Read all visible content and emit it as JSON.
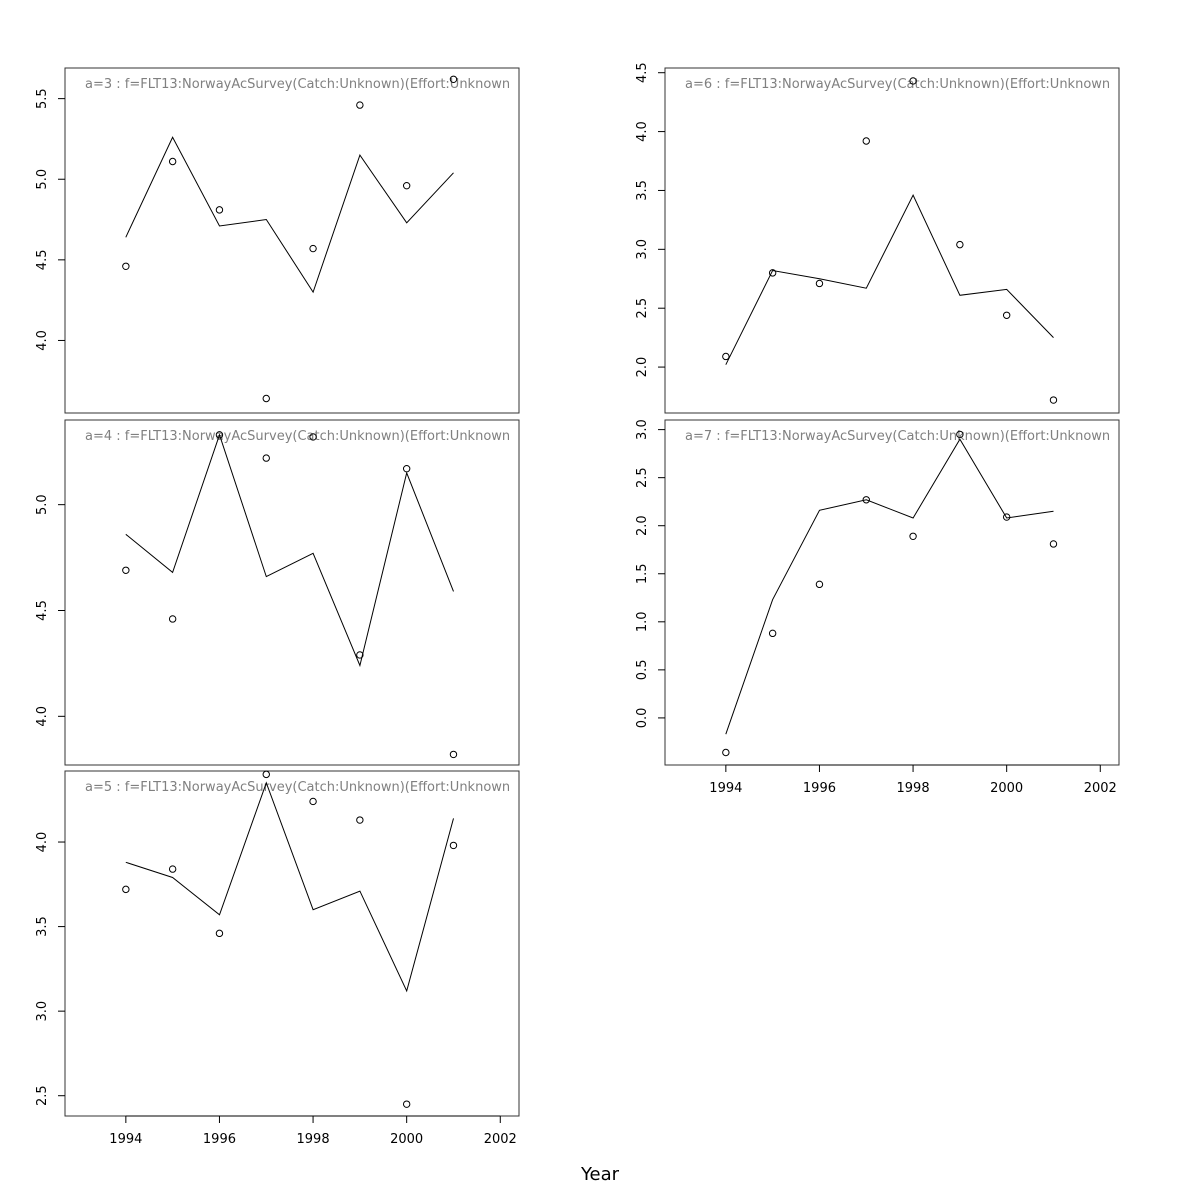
{
  "chart_data": {
    "type": "line",
    "xlabel": "Year",
    "xlim": [
      1992.7,
      2002.4
    ],
    "x_ticks": [
      1994,
      1996,
      1998,
      2000,
      2002
    ],
    "x": [
      1994,
      1995,
      1996,
      1997,
      1998,
      1999,
      2000,
      2001
    ],
    "panels": [
      {
        "title": "a=3  :  f=FLT13:NorwayAcSurvey(Catch:Unknown)(Effort:Unknown",
        "ylim": [
          3.55,
          5.69
        ],
        "y_ticks": [
          4.0,
          4.5,
          5.0,
          5.5
        ],
        "y_tick_labels": [
          "4.0",
          "4.5",
          "5.0",
          "5.5"
        ],
        "fitted": [
          4.64,
          5.26,
          4.71,
          4.75,
          4.3,
          5.15,
          4.73,
          5.04
        ],
        "observed": [
          4.46,
          5.11,
          4.81,
          3.64,
          4.57,
          5.46,
          4.96,
          5.62
        ]
      },
      {
        "title": "a=4  :  f=FLT13:NorwayAcSurvey(Catch:Unknown)(Effort:Unknown",
        "ylim": [
          3.77,
          5.4
        ],
        "y_ticks": [
          4.0,
          4.5,
          5.0
        ],
        "y_tick_labels": [
          "4.0",
          "4.5",
          "5.0"
        ],
        "fitted": [
          4.86,
          4.68,
          5.33,
          4.66,
          4.77,
          4.24,
          5.15,
          4.59
        ],
        "observed": [
          4.69,
          4.46,
          5.33,
          5.22,
          5.32,
          4.29,
          5.17,
          3.82
        ]
      },
      {
        "title": "a=5  :  f=FLT13:NorwayAcSurvey(Catch:Unknown)(Effort:Unknown",
        "ylim": [
          2.38,
          4.42
        ],
        "y_ticks": [
          2.5,
          3.0,
          3.5,
          4.0
        ],
        "y_tick_labels": [
          "2.5",
          "3.0",
          "3.5",
          "4.0"
        ],
        "fitted": [
          3.88,
          3.79,
          3.57,
          4.35,
          3.6,
          3.71,
          3.12,
          4.14
        ],
        "observed": [
          3.72,
          3.84,
          3.46,
          4.4,
          4.24,
          4.13,
          2.45,
          3.98
        ]
      },
      {
        "title": "a=6  :  f=FLT13:NorwayAcSurvey(Catch:Unknown)(Effort:Unknown",
        "ylim": [
          1.61,
          4.54
        ],
        "y_ticks": [
          2.0,
          2.5,
          3.0,
          3.5,
          4.0,
          4.5
        ],
        "y_tick_labels": [
          "2.0",
          "2.5",
          "3.0",
          "3.5",
          "4.0",
          "4.5"
        ],
        "fitted": [
          2.02,
          2.82,
          2.75,
          2.67,
          3.46,
          2.61,
          2.66,
          2.25
        ],
        "observed": [
          2.09,
          2.8,
          2.71,
          3.92,
          4.43,
          3.04,
          2.44,
          1.72
        ]
      },
      {
        "title": "a=7  :  f=FLT13:NorwayAcSurvey(Catch:Unknown)(Effort:Unknown",
        "ylim": [
          -0.49,
          3.1
        ],
        "y_ticks": [
          0.0,
          0.5,
          1.0,
          1.5,
          2.0,
          2.5,
          3.0
        ],
        "y_tick_labels": [
          "0.0",
          "0.5",
          "1.0",
          "1.5",
          "2.0",
          "2.5",
          "3.0"
        ],
        "fitted": [
          -0.17,
          1.23,
          2.16,
          2.27,
          2.08,
          2.9,
          2.08,
          2.15
        ],
        "observed": [
          -0.36,
          0.88,
          1.39,
          2.27,
          1.89,
          2.95,
          2.09,
          1.81
        ]
      }
    ]
  }
}
